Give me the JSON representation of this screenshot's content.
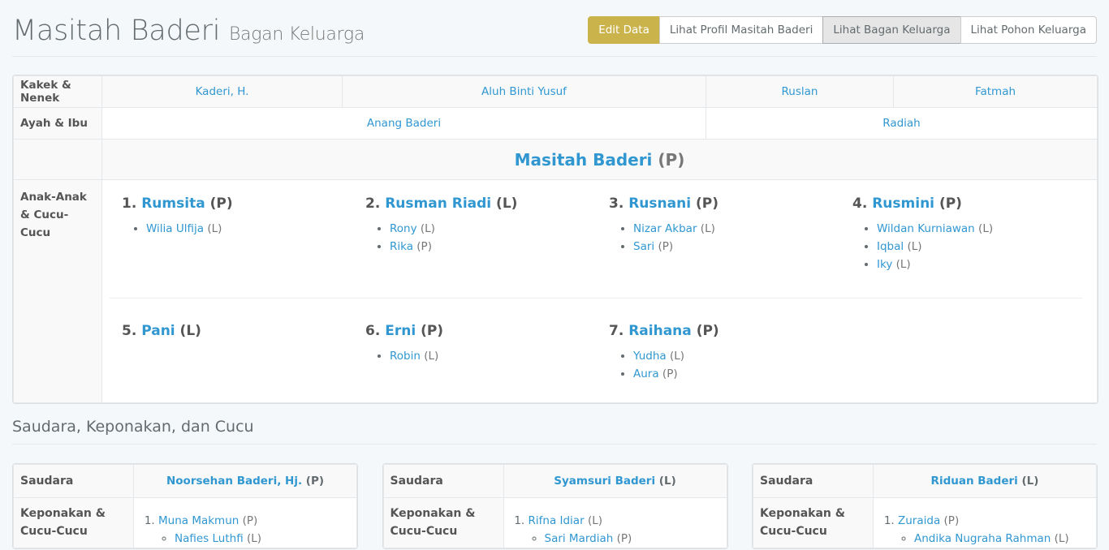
{
  "header": {
    "name": "Masitah Baderi",
    "subtitle": "Bagan Keluarga",
    "buttons": [
      "Edit Data",
      "Lihat Profil Masitah Baderi",
      "Lihat Bagan Keluarga",
      "Lihat Pohon Keluarga"
    ],
    "accent": "#cbb34c"
  },
  "chart": {
    "grand_label": "Kakek & Nenek",
    "grand": [
      "Kaderi, H.",
      "Aluh Binti Yusuf",
      "Ruslan",
      "Fatmah"
    ],
    "parents_label": "Ayah & Ibu",
    "parents": [
      "Anang Baderi",
      "Radiah"
    ],
    "self": {
      "name": "Masitah Baderi",
      "sex": "(P)"
    },
    "children_label": "Anak-Anak & Cucu-Cucu",
    "children": [
      {
        "no": "1.",
        "name": "Rumsita",
        "sex": "(P)",
        "kids": [
          {
            "name": "Wilia Ulfija",
            "sex": "(L)"
          }
        ]
      },
      {
        "no": "2.",
        "name": "Rusman Riadi",
        "sex": "(L)",
        "kids": [
          {
            "name": "Rony",
            "sex": "(L)"
          },
          {
            "name": "Rika",
            "sex": "(P)"
          }
        ]
      },
      {
        "no": "3.",
        "name": "Rusnani",
        "sex": "(P)",
        "kids": [
          {
            "name": "Nizar Akbar",
            "sex": "(L)"
          },
          {
            "name": "Sari",
            "sex": "(P)"
          }
        ]
      },
      {
        "no": "4.",
        "name": "Rusmini",
        "sex": "(P)",
        "kids": [
          {
            "name": "Wildan Kurniawan",
            "sex": "(L)"
          },
          {
            "name": "Iqbal",
            "sex": "(L)"
          },
          {
            "name": "Iky",
            "sex": "(L)"
          }
        ]
      },
      {
        "no": "5.",
        "name": "Pani",
        "sex": "(L)",
        "kids": []
      },
      {
        "no": "6.",
        "name": "Erni",
        "sex": "(P)",
        "kids": [
          {
            "name": "Robin",
            "sex": "(L)"
          }
        ]
      },
      {
        "no": "7.",
        "name": "Raihana",
        "sex": "(P)",
        "kids": [
          {
            "name": "Yudha",
            "sex": "(L)"
          },
          {
            "name": "Aura",
            "sex": "(P)"
          }
        ]
      }
    ]
  },
  "siblings_title": "Saudara, Keponakan, dan Cucu",
  "siblings": [
    {
      "label": "Saudara",
      "name": "Noorsehan Baderi, Hj.",
      "sex": "(P)",
      "sub_label": "Keponakan & Cucu-Cucu",
      "nephew": {
        "name": "Muna Makmun",
        "sex": "(P)"
      },
      "grand": {
        "name": "Nafies Luthfi",
        "sex": "(L)"
      }
    },
    {
      "label": "Saudara",
      "name": "Syamsuri Baderi",
      "sex": "(L)",
      "sub_label": "Keponakan & Cucu-Cucu",
      "nephew": {
        "name": "Rifna Idiar",
        "sex": "(L)"
      },
      "grand": {
        "name": "Sari Mardiah",
        "sex": "(P)"
      }
    },
    {
      "label": "Saudara",
      "name": "Riduan Baderi",
      "sex": "(L)",
      "sub_label": "Keponakan & Cucu-Cucu",
      "nephew": {
        "name": "Zuraida",
        "sex": "(P)"
      },
      "grand": {
        "name": "Andika Nugraha Rahman",
        "sex": "(L)"
      }
    }
  ]
}
